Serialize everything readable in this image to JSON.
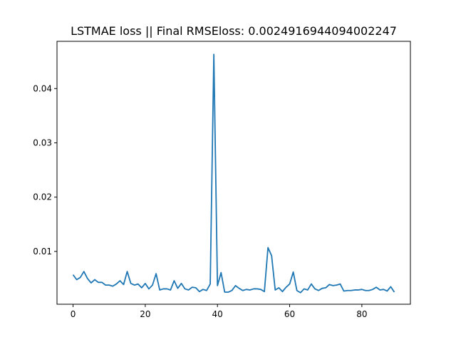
{
  "chart_data": {
    "type": "line",
    "title": "LSTMAE loss || Final RMSEloss: 0.0024916944094002247",
    "xlabel": "",
    "ylabel": "",
    "xlim": [
      -4.45,
      93.45
    ],
    "ylim": [
      0.00027,
      0.0487
    ],
    "x_ticks": [
      0,
      20,
      40,
      60,
      80
    ],
    "x_tick_labels": [
      "0",
      "20",
      "40",
      "60",
      "80"
    ],
    "y_ticks": [
      0.01,
      0.02,
      0.03,
      0.04
    ],
    "y_tick_labels": [
      "0.01",
      "0.02",
      "0.03",
      "0.04"
    ],
    "grid": false,
    "series": [
      {
        "color": "#1f77b4",
        "x": [
          0,
          1,
          2,
          3,
          4,
          5,
          6,
          7,
          8,
          9,
          10,
          11,
          12,
          13,
          14,
          15,
          16,
          17,
          18,
          19,
          20,
          21,
          22,
          23,
          24,
          25,
          26,
          27,
          28,
          29,
          30,
          31,
          32,
          33,
          34,
          35,
          36,
          37,
          38,
          39,
          40,
          41,
          42,
          43,
          44,
          45,
          46,
          47,
          48,
          49,
          50,
          51,
          52,
          53,
          54,
          55,
          56,
          57,
          58,
          59,
          60,
          61,
          62,
          63,
          64,
          65,
          66,
          67,
          68,
          69,
          70,
          71,
          72,
          73,
          74,
          75,
          76,
          77,
          78,
          79,
          80,
          81,
          82,
          83,
          84,
          85,
          86,
          87,
          88,
          89
        ],
        "y": [
          0.0057,
          0.0048,
          0.0052,
          0.0063,
          0.005,
          0.0042,
          0.0048,
          0.0043,
          0.0043,
          0.0038,
          0.0038,
          0.0036,
          0.004,
          0.0046,
          0.0039,
          0.0063,
          0.0041,
          0.0038,
          0.004,
          0.0033,
          0.0041,
          0.0031,
          0.0038,
          0.0059,
          0.0029,
          0.0031,
          0.0031,
          0.0029,
          0.0046,
          0.0032,
          0.0041,
          0.0031,
          0.0029,
          0.0034,
          0.0033,
          0.0026,
          0.003,
          0.0028,
          0.004,
          0.0463,
          0.0037,
          0.0061,
          0.0025,
          0.0025,
          0.0028,
          0.0037,
          0.0032,
          0.0028,
          0.003,
          0.0029,
          0.0031,
          0.0031,
          0.003,
          0.0026,
          0.0107,
          0.0092,
          0.0029,
          0.0033,
          0.0026,
          0.0034,
          0.004,
          0.0062,
          0.0028,
          0.0024,
          0.0031,
          0.0029,
          0.004,
          0.0031,
          0.0028,
          0.0032,
          0.0033,
          0.0039,
          0.0037,
          0.0038,
          0.004,
          0.0027,
          0.0028,
          0.0028,
          0.0029,
          0.0029,
          0.003,
          0.0028,
          0.0028,
          0.003,
          0.0034,
          0.0029,
          0.003,
          0.0027,
          0.0035,
          0.0025
        ]
      }
    ]
  }
}
